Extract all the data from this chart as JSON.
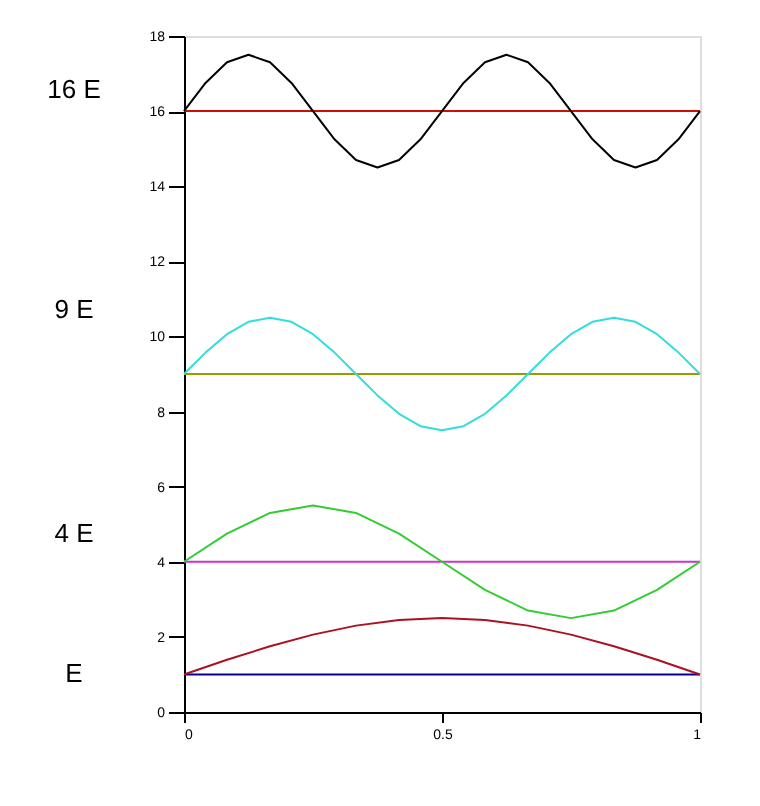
{
  "chart_data": {
    "type": "line",
    "xlim": [
      0,
      1
    ],
    "xticks": [
      {
        "value": 0,
        "label": "0"
      },
      0.5,
      {
        "value": 1,
        "label": "1"
      }
    ],
    "ylim": [
      0,
      18
    ],
    "yticks": [
      0,
      2,
      4,
      6,
      8,
      10,
      12,
      14,
      16,
      18
    ],
    "grid": false,
    "marker": "none",
    "line_style": "solid",
    "series": [
      {
        "color": "#00008b",
        "x": [
          0,
          1
        ],
        "values": [
          1,
          1
        ]
      },
      {
        "color": "#aa1122",
        "x": [
          0,
          0.0833,
          0.1667,
          0.25,
          0.3333,
          0.4167,
          0.5,
          0.5833,
          0.6667,
          0.75,
          0.8333,
          0.9167,
          1
        ],
        "values": [
          1,
          1.39,
          1.75,
          2.06,
          2.3,
          2.45,
          2.5,
          2.45,
          2.3,
          2.06,
          1.75,
          1.39,
          1
        ]
      },
      {
        "color": "#cc33cc",
        "x": [
          0,
          1
        ],
        "values": [
          4,
          4
        ]
      },
      {
        "color": "#33cc33",
        "x": [
          0,
          0.0833,
          0.1667,
          0.25,
          0.3333,
          0.4167,
          0.5,
          0.5833,
          0.6667,
          0.75,
          0.8333,
          0.9167,
          1
        ],
        "values": [
          4,
          4.75,
          5.3,
          5.5,
          5.3,
          4.75,
          4,
          3.25,
          2.7,
          2.5,
          2.7,
          3.25,
          4
        ]
      },
      {
        "color": "#999900",
        "x": [
          0,
          1
        ],
        "values": [
          9,
          9
        ]
      },
      {
        "color": "#33dddd",
        "x": [
          0,
          0.0417,
          0.0833,
          0.125,
          0.1667,
          0.2083,
          0.25,
          0.2917,
          0.3333,
          0.375,
          0.4167,
          0.4583,
          0.5,
          0.5417,
          0.5833,
          0.625,
          0.6667,
          0.7083,
          0.75,
          0.7917,
          0.8333,
          0.875,
          0.9167,
          0.9583,
          1
        ],
        "values": [
          9,
          9.57,
          10.06,
          10.39,
          10.5,
          10.39,
          10.06,
          9.57,
          9,
          8.43,
          7.94,
          7.61,
          7.5,
          7.61,
          7.94,
          8.43,
          9,
          9.57,
          10.06,
          10.39,
          10.5,
          10.39,
          10.06,
          9.57,
          9
        ]
      },
      {
        "color": "#cc1100",
        "x": [
          0,
          1
        ],
        "values": [
          16,
          16
        ]
      },
      {
        "color": "#000000",
        "x": [
          0,
          0.0417,
          0.0833,
          0.125,
          0.1667,
          0.2083,
          0.25,
          0.2917,
          0.3333,
          0.375,
          0.4167,
          0.4583,
          0.5,
          0.5417,
          0.5833,
          0.625,
          0.6667,
          0.7083,
          0.75,
          0.7917,
          0.8333,
          0.875,
          0.9167,
          0.9583,
          1
        ],
        "values": [
          16,
          16.75,
          17.3,
          17.5,
          17.3,
          16.75,
          16,
          15.25,
          14.7,
          14.5,
          14.7,
          15.25,
          16,
          16.75,
          17.3,
          17.5,
          17.3,
          16.75,
          16,
          15.25,
          14.7,
          14.5,
          14.7,
          15.25,
          16
        ]
      }
    ],
    "annotations": [
      "16 E",
      "9 E",
      "4 E",
      "E"
    ]
  }
}
